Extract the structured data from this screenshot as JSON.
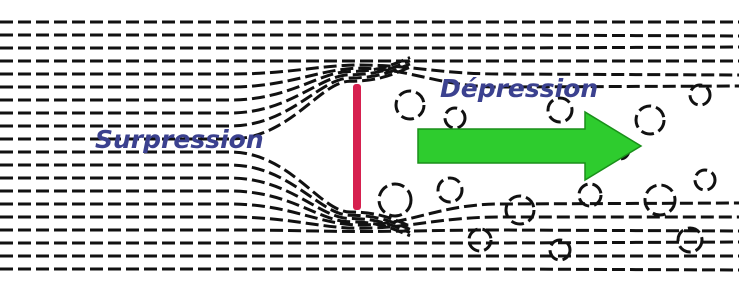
{
  "labels": {
    "left": "Surpression",
    "right": "Dépression"
  }
}
